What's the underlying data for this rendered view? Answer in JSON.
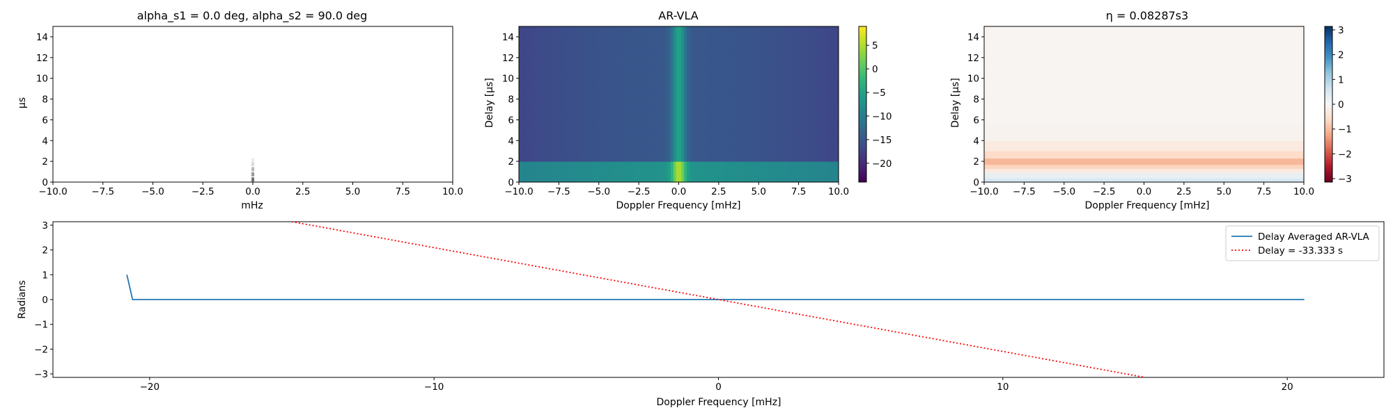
{
  "figure": {
    "panels": [
      {
        "id": "p1",
        "title": "alpha_s1 = 0.0 deg, alpha_s2 = 90.0 deg",
        "xlabel": "mHz",
        "ylabel": "µs"
      },
      {
        "id": "p2",
        "title": "AR-VLA",
        "xlabel": "Doppler Frequency [mHz]",
        "ylabel": "Delay [μs]"
      },
      {
        "id": "p3",
        "title": "η = 0.08287s3",
        "xlabel": "Doppler Frequency [mHz]",
        "ylabel": "Delay [μs]"
      },
      {
        "id": "p4",
        "title": "",
        "xlabel": "Doppler Frequency [mHz]",
        "ylabel": "Radians"
      }
    ],
    "colormaps": {
      "viridis": [
        "#440154",
        "#482878",
        "#3e4989",
        "#31688e",
        "#26828e",
        "#1f9e89",
        "#35b779",
        "#6ece58",
        "#b5de2b",
        "#fde725"
      ],
      "rdbu": [
        "#67001f",
        "#b2182b",
        "#d6604d",
        "#f4a582",
        "#fddbc7",
        "#f7f7f7",
        "#d1e5f0",
        "#92c5de",
        "#4393c3",
        "#2166ac",
        "#053061"
      ]
    }
  },
  "chart_data": [
    {
      "type": "heatmap",
      "panel": "p1",
      "title": "alpha_s1 = 0.0 deg, alpha_s2 = 90.0 deg",
      "xlabel": "mHz",
      "ylabel": "µs",
      "xlim": [
        -10,
        10
      ],
      "ylim": [
        0,
        15
      ],
      "xticks": [
        -10.0,
        -7.5,
        -5.0,
        -2.5,
        0.0,
        2.5,
        5.0,
        7.5,
        10.0
      ],
      "yticks": [
        0,
        2,
        4,
        6,
        8,
        10,
        12,
        14
      ],
      "colormap": "gray_r",
      "nonzero_cells": [
        {
          "x": 0.0,
          "y": 0.25,
          "intensity": 0.55
        },
        {
          "x": 0.0,
          "y": 0.75,
          "intensity": 0.4
        },
        {
          "x": 0.0,
          "y": 1.25,
          "intensity": 0.28
        },
        {
          "x": 0.0,
          "y": 1.75,
          "intensity": 0.15
        },
        {
          "x": 0.0,
          "y": 2.1,
          "intensity": 0.08
        }
      ]
    },
    {
      "type": "heatmap",
      "panel": "p2",
      "title": "AR-VLA",
      "xlabel": "Doppler Frequency [mHz]",
      "ylabel": "Delay [μs]",
      "xlim": [
        -10,
        10
      ],
      "ylim": [
        0,
        15
      ],
      "xticks": [
        -10.0,
        -7.5,
        -5.0,
        -2.5,
        0.0,
        2.5,
        5.0,
        7.5,
        10.0
      ],
      "yticks": [
        0,
        2,
        4,
        6,
        8,
        10,
        12,
        14
      ],
      "colormap": "viridis",
      "colorbar": {
        "range": [
          -24,
          9
        ],
        "ticks": [
          5,
          0,
          -5,
          -10,
          -15,
          -20
        ]
      },
      "features": {
        "background_level": -15,
        "background_level_edges": -17,
        "low_delay_band": {
          "delay_range": [
            0,
            2.1
          ],
          "level": -7
        },
        "zero_doppler_ridge": {
          "x": 0,
          "width_mHz": 0.6,
          "level": -5,
          "peak_level_low_delay": 5
        }
      }
    },
    {
      "type": "heatmap",
      "panel": "p3",
      "title": "η = 0.08287s3",
      "xlabel": "Doppler Frequency [mHz]",
      "ylabel": "Delay [μs]",
      "xlim": [
        -10,
        10
      ],
      "ylim": [
        0,
        15
      ],
      "xticks": [
        -10.0,
        -7.5,
        -5.0,
        -2.5,
        0.0,
        2.5,
        5.0,
        7.5,
        10.0
      ],
      "yticks": [
        0,
        2,
        4,
        6,
        8,
        10,
        12,
        14
      ],
      "colormap": "RdBu",
      "colorbar": {
        "range": [
          -3.14,
          3.14
        ],
        "ticks": [
          3,
          2,
          1,
          0,
          -1,
          -2,
          -3
        ]
      },
      "delay_profile": [
        {
          "delay_range": [
            0,
            0.4
          ],
          "value": 0.5
        },
        {
          "delay_range": [
            0.4,
            0.9
          ],
          "value": 0.25
        },
        {
          "delay_range": [
            0.9,
            1.3
          ],
          "value": -0.3
        },
        {
          "delay_range": [
            1.3,
            1.7
          ],
          "value": -0.7
        },
        {
          "delay_range": [
            1.7,
            2.3
          ],
          "value": -1.05
        },
        {
          "delay_range": [
            2.3,
            3.0
          ],
          "value": -0.6
        },
        {
          "delay_range": [
            3.0,
            4.0
          ],
          "value": -0.3
        },
        {
          "delay_range": [
            4.0,
            5.5
          ],
          "value": -0.12
        },
        {
          "delay_range": [
            5.5,
            15
          ],
          "value": -0.07
        }
      ]
    },
    {
      "type": "line",
      "panel": "p4",
      "xlabel": "Doppler Frequency [mHz]",
      "ylabel": "Radians",
      "xlim": [
        -23.4,
        23.4
      ],
      "ylim": [
        -3.14,
        3.14
      ],
      "xticks": [
        -20,
        -10,
        0,
        10,
        20
      ],
      "yticks": [
        3,
        2,
        1,
        0,
        -1,
        -2,
        -3
      ],
      "legend": "top-right",
      "series": [
        {
          "name": "Delay Averaged  AR-VLA",
          "color": "#1f77b4",
          "style": "solid",
          "x": [
            -20.8,
            -20.6,
            20.6
          ],
          "y": [
            1.0,
            0.0,
            0.0
          ]
        },
        {
          "name": "Delay = -33.333 s",
          "color": "#ff0000",
          "style": "dotted",
          "x": [
            -15.0,
            15.0
          ],
          "y": [
            3.14,
            -3.14
          ]
        }
      ]
    }
  ]
}
